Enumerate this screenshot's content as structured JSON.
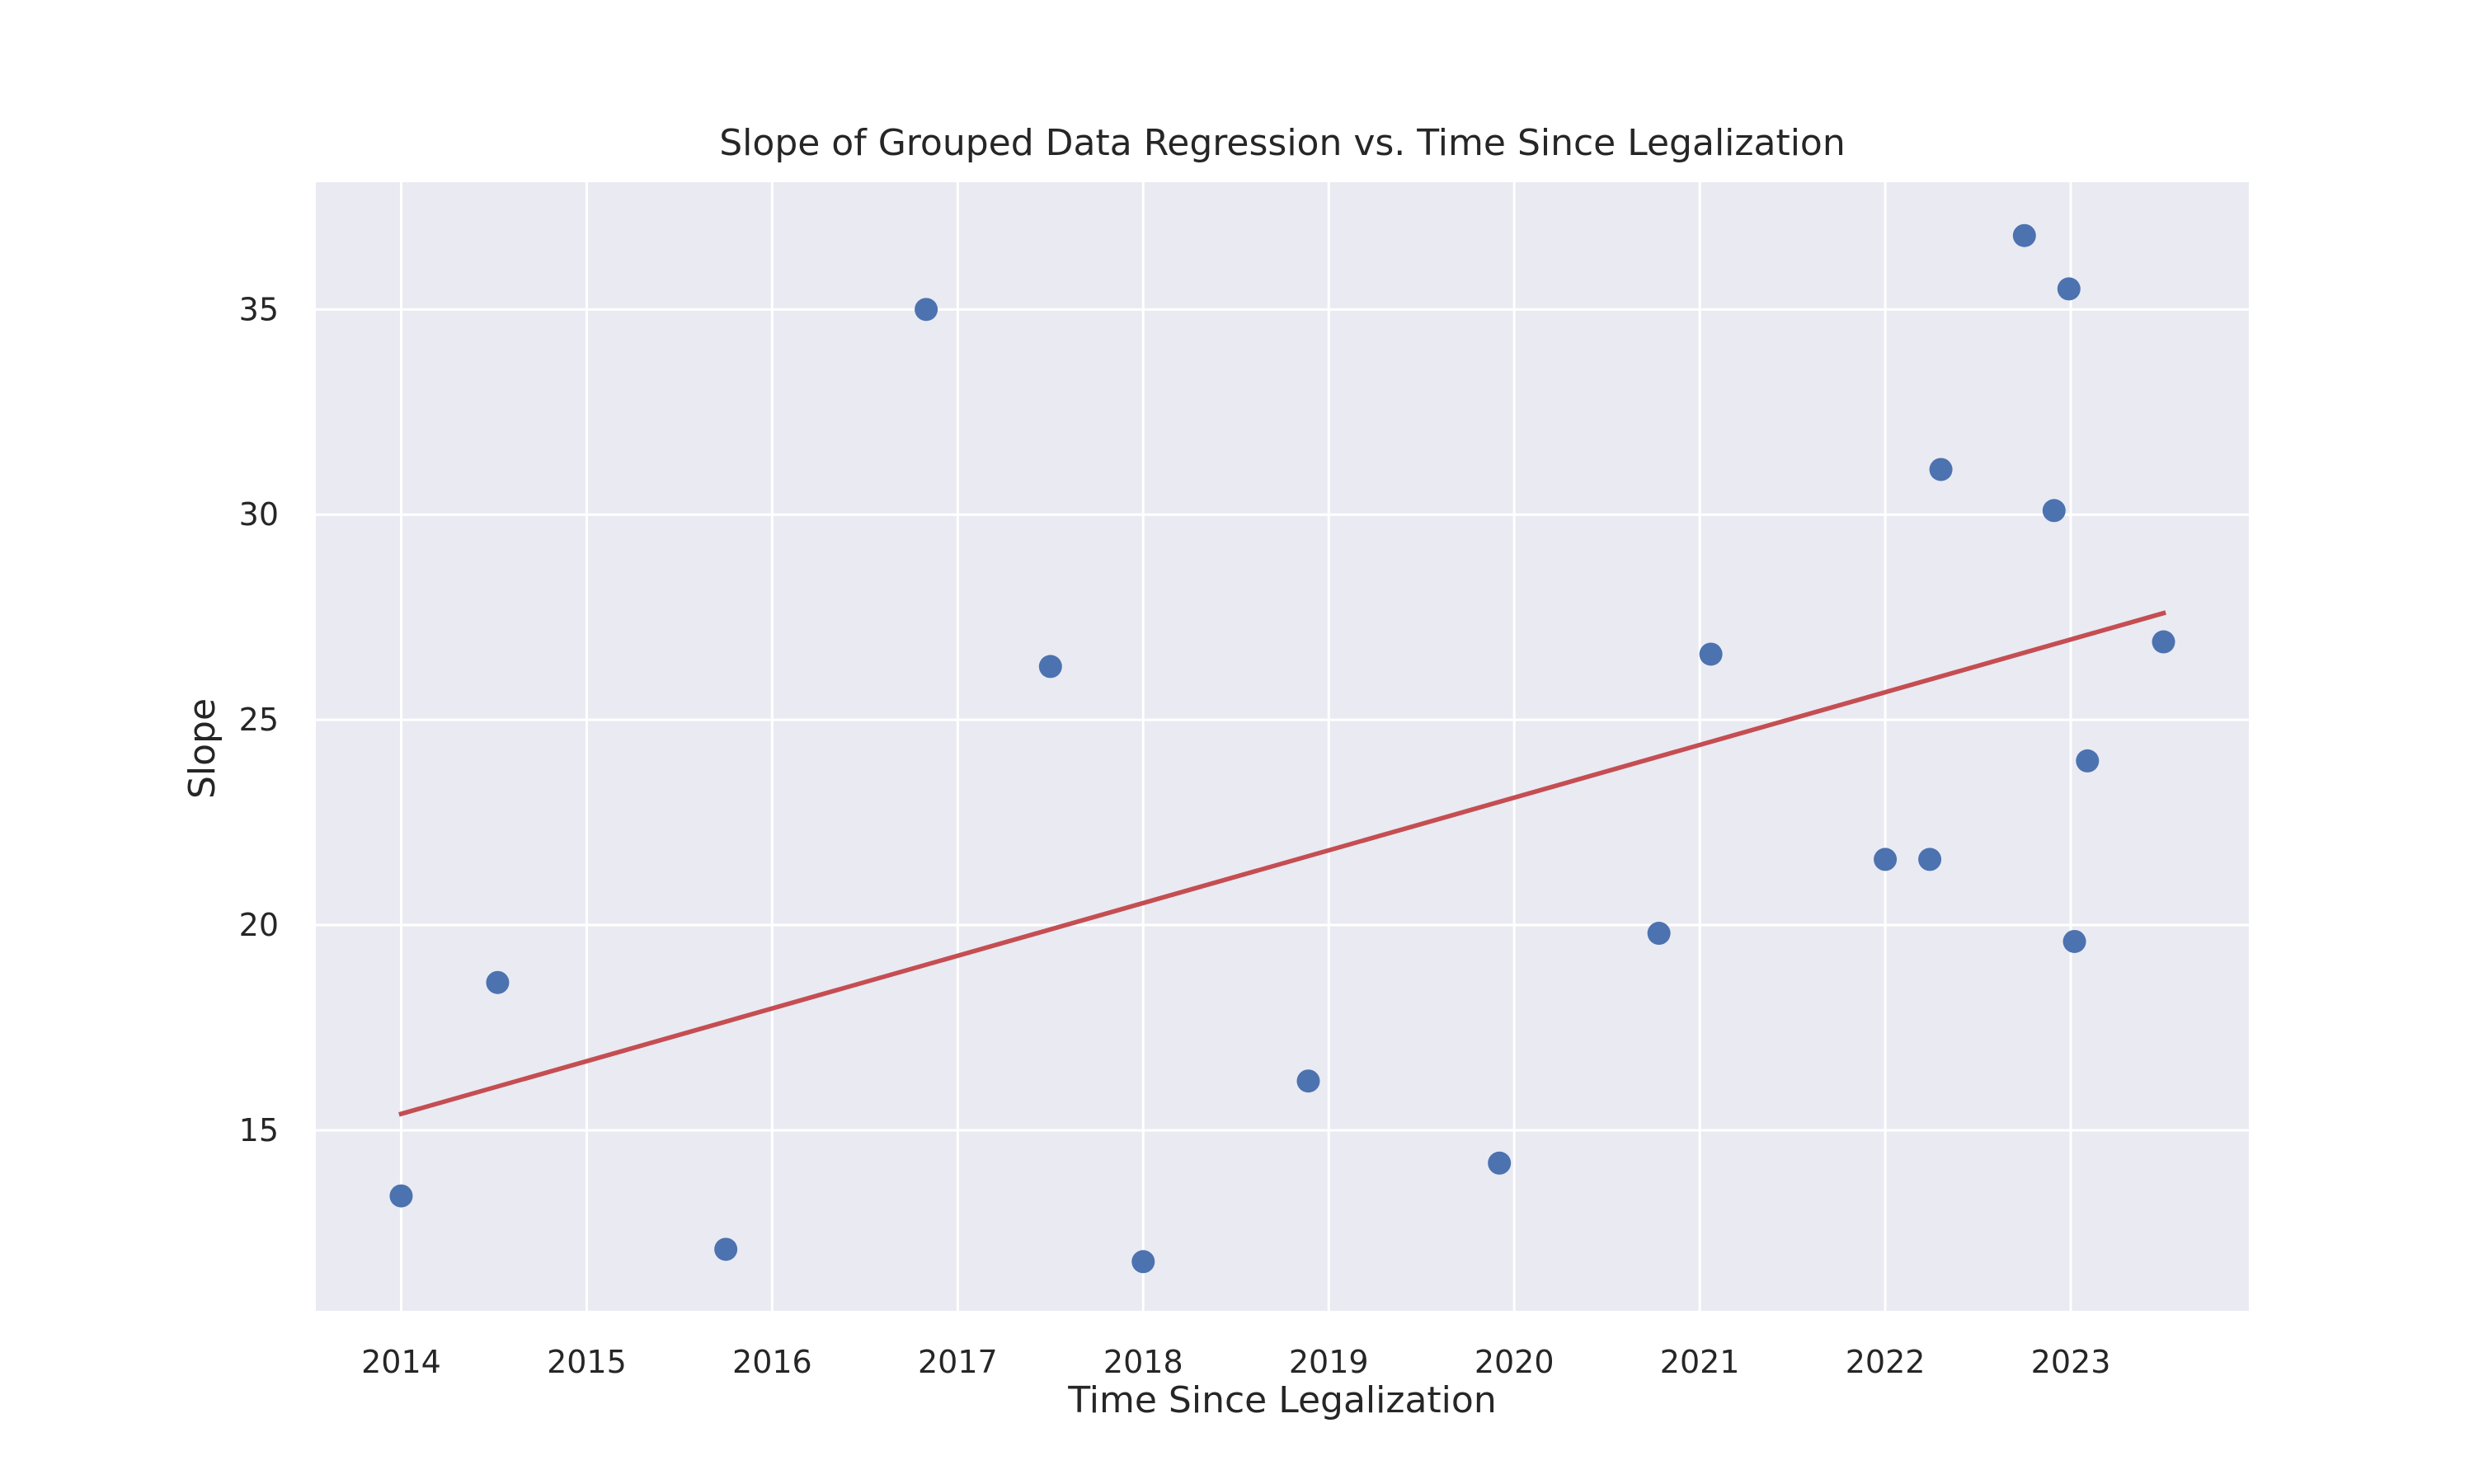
{
  "chart_data": {
    "type": "scatter",
    "title": "Slope of Grouped Data Regression vs. Time Since Legalization",
    "xlabel": "Time Since Legalization",
    "ylabel": "Slope",
    "xlim": [
      2013.54,
      2023.96
    ],
    "ylim": [
      10.6,
      38.1
    ],
    "x_ticks": [
      2014,
      2015,
      2016,
      2017,
      2018,
      2019,
      2020,
      2021,
      2022,
      2023
    ],
    "y_ticks": [
      15,
      20,
      25,
      30,
      35
    ],
    "grid": true,
    "background_color": "#eaeaf2",
    "grid_color": "#ffffff",
    "series": [
      {
        "type": "scatter",
        "color": "#4c72b0",
        "points": [
          {
            "x": 2014.0,
            "y": 13.4
          },
          {
            "x": 2014.52,
            "y": 18.6
          },
          {
            "x": 2015.75,
            "y": 12.1
          },
          {
            "x": 2016.83,
            "y": 35.0
          },
          {
            "x": 2017.5,
            "y": 26.3
          },
          {
            "x": 2018.0,
            "y": 11.8
          },
          {
            "x": 2018.89,
            "y": 16.2
          },
          {
            "x": 2019.92,
            "y": 14.2
          },
          {
            "x": 2020.78,
            "y": 19.8
          },
          {
            "x": 2021.06,
            "y": 26.6
          },
          {
            "x": 2022.0,
            "y": 21.6
          },
          {
            "x": 2022.24,
            "y": 21.6
          },
          {
            "x": 2022.3,
            "y": 31.1
          },
          {
            "x": 2022.75,
            "y": 36.8
          },
          {
            "x": 2022.91,
            "y": 30.1
          },
          {
            "x": 2022.99,
            "y": 35.5
          },
          {
            "x": 2023.02,
            "y": 19.6
          },
          {
            "x": 2023.09,
            "y": 24.0
          },
          {
            "x": 2023.5,
            "y": 26.9
          }
        ]
      },
      {
        "type": "line",
        "color": "#c44e52",
        "points": [
          {
            "x": 2014.0,
            "y": 15.4
          },
          {
            "x": 2023.5,
            "y": 27.6
          }
        ]
      }
    ]
  }
}
